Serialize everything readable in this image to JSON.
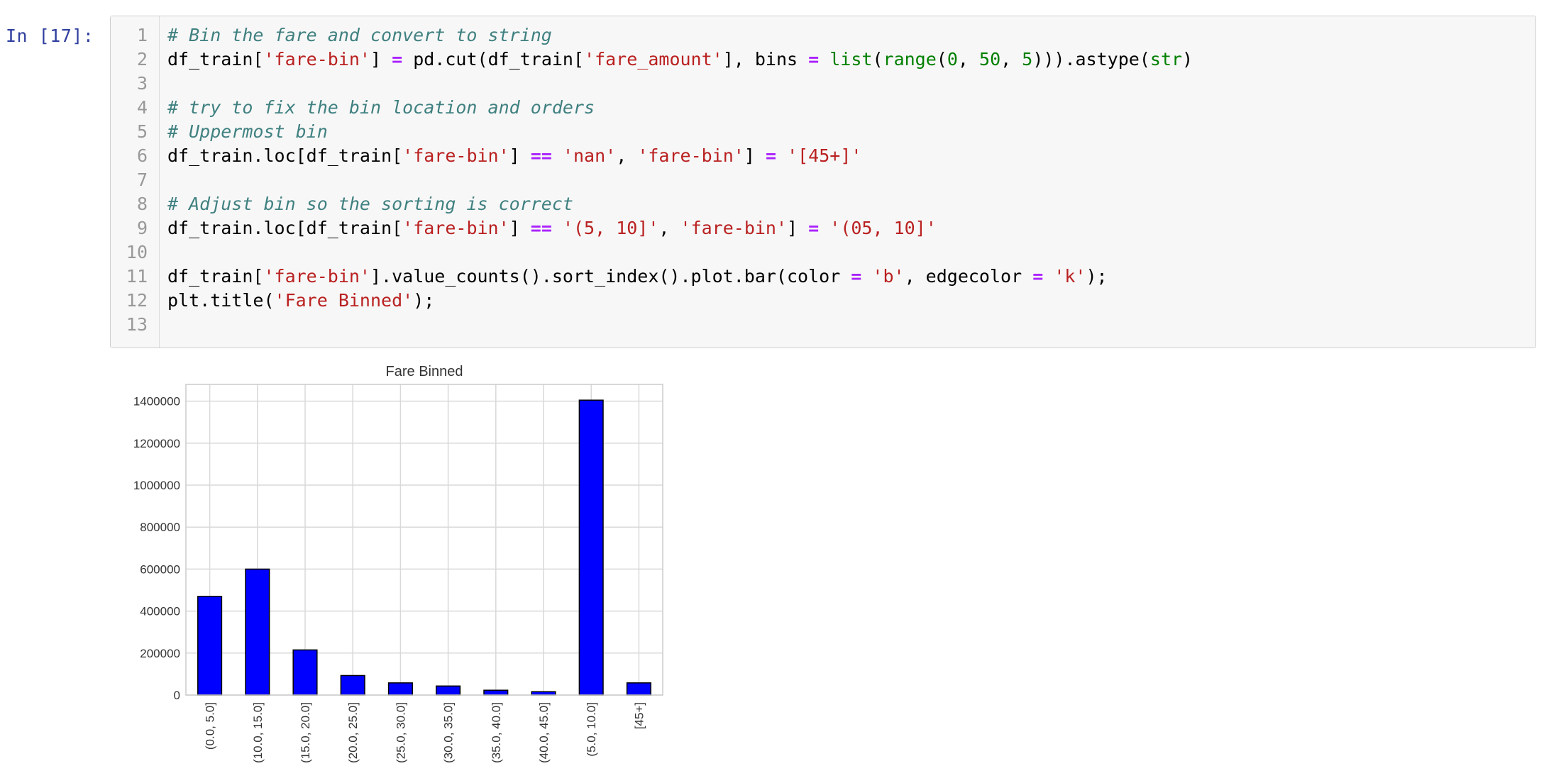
{
  "cell": {
    "prompt": "In [17]:",
    "lines": [
      {
        "num": "1",
        "tokens": [
          {
            "t": "# Bin the fare and convert to string",
            "c": "cm"
          }
        ]
      },
      {
        "num": "2",
        "tokens": [
          {
            "t": "df_train[",
            "c": ""
          },
          {
            "t": "'fare-bin'",
            "c": "st"
          },
          {
            "t": "] ",
            "c": ""
          },
          {
            "t": "=",
            "c": "op"
          },
          {
            "t": " pd.cut(df_train[",
            "c": ""
          },
          {
            "t": "'fare_amount'",
            "c": "st"
          },
          {
            "t": "], bins ",
            "c": ""
          },
          {
            "t": "=",
            "c": "op"
          },
          {
            "t": " ",
            "c": ""
          },
          {
            "t": "list",
            "c": "bi"
          },
          {
            "t": "(",
            "c": ""
          },
          {
            "t": "range",
            "c": "bi"
          },
          {
            "t": "(",
            "c": ""
          },
          {
            "t": "0",
            "c": "nm"
          },
          {
            "t": ", ",
            "c": ""
          },
          {
            "t": "50",
            "c": "nm"
          },
          {
            "t": ", ",
            "c": ""
          },
          {
            "t": "5",
            "c": "nm"
          },
          {
            "t": "))).astype(",
            "c": ""
          },
          {
            "t": "str",
            "c": "bi"
          },
          {
            "t": ")",
            "c": ""
          }
        ]
      },
      {
        "num": "3",
        "tokens": []
      },
      {
        "num": "4",
        "tokens": [
          {
            "t": "# try to fix the bin location and orders",
            "c": "cm"
          }
        ]
      },
      {
        "num": "5",
        "tokens": [
          {
            "t": "# Uppermost bin",
            "c": "cm"
          }
        ]
      },
      {
        "num": "6",
        "tokens": [
          {
            "t": "df_train.loc[df_train[",
            "c": ""
          },
          {
            "t": "'fare-bin'",
            "c": "st"
          },
          {
            "t": "] ",
            "c": ""
          },
          {
            "t": "==",
            "c": "op"
          },
          {
            "t": " ",
            "c": ""
          },
          {
            "t": "'nan'",
            "c": "st"
          },
          {
            "t": ", ",
            "c": ""
          },
          {
            "t": "'fare-bin'",
            "c": "st"
          },
          {
            "t": "] ",
            "c": ""
          },
          {
            "t": "=",
            "c": "op"
          },
          {
            "t": " ",
            "c": ""
          },
          {
            "t": "'[45+]'",
            "c": "st"
          }
        ]
      },
      {
        "num": "7",
        "tokens": []
      },
      {
        "num": "8",
        "tokens": [
          {
            "t": "# Adjust bin so the sorting is correct",
            "c": "cm"
          }
        ]
      },
      {
        "num": "9",
        "tokens": [
          {
            "t": "df_train.loc[df_train[",
            "c": ""
          },
          {
            "t": "'fare-bin'",
            "c": "st"
          },
          {
            "t": "] ",
            "c": ""
          },
          {
            "t": "==",
            "c": "op"
          },
          {
            "t": " ",
            "c": ""
          },
          {
            "t": "'(5, 10]'",
            "c": "st"
          },
          {
            "t": ", ",
            "c": ""
          },
          {
            "t": "'fare-bin'",
            "c": "st"
          },
          {
            "t": "] ",
            "c": ""
          },
          {
            "t": "=",
            "c": "op"
          },
          {
            "t": " ",
            "c": ""
          },
          {
            "t": "'(05, 10]'",
            "c": "st"
          }
        ]
      },
      {
        "num": "10",
        "tokens": []
      },
      {
        "num": "11",
        "tokens": [
          {
            "t": "df_train[",
            "c": ""
          },
          {
            "t": "'fare-bin'",
            "c": "st"
          },
          {
            "t": "].value_counts().sort_index().plot.bar(color ",
            "c": ""
          },
          {
            "t": "=",
            "c": "op"
          },
          {
            "t": " ",
            "c": ""
          },
          {
            "t": "'b'",
            "c": "st"
          },
          {
            "t": ", edgecolor ",
            "c": ""
          },
          {
            "t": "=",
            "c": "op"
          },
          {
            "t": " ",
            "c": ""
          },
          {
            "t": "'k'",
            "c": "st"
          },
          {
            "t": ");",
            "c": ""
          }
        ]
      },
      {
        "num": "12",
        "tokens": [
          {
            "t": "plt.title(",
            "c": ""
          },
          {
            "t": "'Fare Binned'",
            "c": "st"
          },
          {
            "t": ");",
            "c": ""
          }
        ]
      },
      {
        "num": "13",
        "tokens": []
      }
    ]
  },
  "chart_data": {
    "type": "bar",
    "title": "Fare Binned",
    "xlabel": "",
    "ylabel": "",
    "categories": [
      "(0.0, 5.0]",
      "(10.0, 15.0]",
      "(15.0, 20.0]",
      "(20.0, 25.0]",
      "(25.0, 30.0]",
      "(30.0, 35.0]",
      "(35.0, 40.0]",
      "(40.0, 45.0]",
      "(5.0, 10.0]",
      "[45+]"
    ],
    "values": [
      470000,
      600000,
      215000,
      93000,
      58000,
      43000,
      23000,
      16000,
      1405000,
      58000
    ],
    "ylim": [
      0,
      1480000
    ],
    "yticks": [
      0,
      200000,
      400000,
      600000,
      800000,
      1000000,
      1200000,
      1400000
    ],
    "ytick_labels": [
      "0",
      "200000",
      "400000",
      "600000",
      "800000",
      "1000000",
      "1200000",
      "1400000"
    ],
    "grid": true,
    "bar_color": "#0000ff",
    "edge_color": "#000000"
  }
}
